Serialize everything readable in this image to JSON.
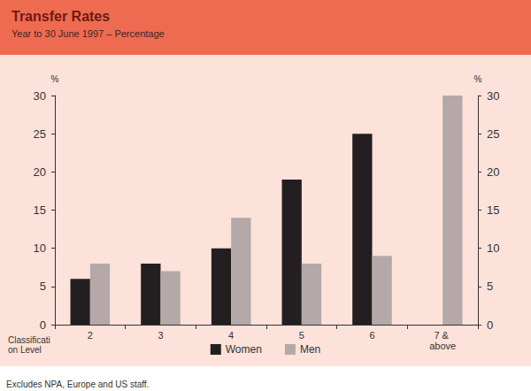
{
  "chart_data": {
    "type": "bar",
    "title": "Transfer Rates",
    "subtitle": "Year to 30 June 1997 – Percentage",
    "xlabel": "Classification Level",
    "ylabel": "%",
    "y2label": "%",
    "categories": [
      "2",
      "3",
      "4",
      "5",
      "6",
      "7 & above"
    ],
    "series": [
      {
        "name": "Women",
        "color": "#231f20",
        "values": [
          6,
          8,
          10,
          19,
          25,
          null
        ]
      },
      {
        "name": "Men",
        "color": "#b4a9a8",
        "values": [
          8,
          7,
          14,
          8,
          9,
          30
        ]
      }
    ],
    "ylim": [
      0,
      30
    ],
    "yticks": [
      0,
      5,
      10,
      15,
      20,
      25,
      30
    ],
    "y2lim": [
      0,
      30
    ],
    "y2ticks": [
      0,
      5,
      10,
      15,
      20,
      25,
      30
    ],
    "grid": false,
    "legend": "bottom",
    "footnote": "Excludes NPA, Europe and US staff."
  }
}
